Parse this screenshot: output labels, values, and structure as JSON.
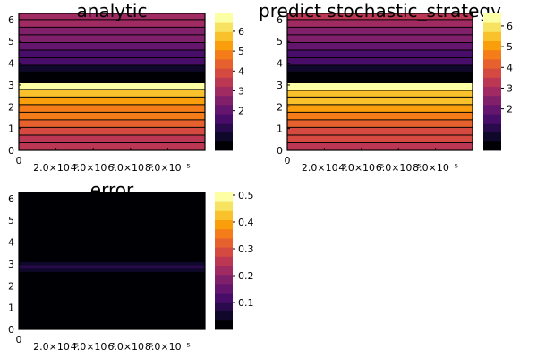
{
  "chart_data": [
    {
      "type": "heatmap",
      "title": "analytic",
      "x_ticks": [
        {
          "value": 0,
          "label": "0"
        },
        {
          "value": 2e-05,
          "label": "2.0×10⁻⁵"
        },
        {
          "value": 4e-05,
          "label": "4.0×10⁻⁵"
        },
        {
          "value": 6e-05,
          "label": "6.0×10⁻⁵"
        },
        {
          "value": 8e-05,
          "label": "8.0×10⁻⁵"
        }
      ],
      "y_ticks": [
        "0",
        "1",
        "2",
        "3",
        "4",
        "5",
        "6"
      ],
      "xlim": [
        0,
        0.0001
      ],
      "ylim": [
        0,
        6.283
      ],
      "y_bands": [
        {
          "y0": 0.0,
          "y1": 0.35,
          "value": 3.3
        },
        {
          "y0": 0.35,
          "y1": 0.7,
          "value": 3.6
        },
        {
          "y0": 0.7,
          "y1": 1.05,
          "value": 3.95
        },
        {
          "y0": 1.05,
          "y1": 1.4,
          "value": 4.3
        },
        {
          "y0": 1.4,
          "y1": 1.75,
          "value": 4.6
        },
        {
          "y0": 1.75,
          "y1": 2.1,
          "value": 4.95
        },
        {
          "y0": 2.1,
          "y1": 2.45,
          "value": 5.3
        },
        {
          "y0": 2.45,
          "y1": 2.8,
          "value": 5.7
        },
        {
          "y0": 2.8,
          "y1": 3.1,
          "value": 6.6
        },
        {
          "y0": 3.1,
          "y1": 3.6,
          "value": 0.0
        },
        {
          "y0": 3.6,
          "y1": 3.9,
          "value": 0.8
        },
        {
          "y0": 3.9,
          "y1": 4.25,
          "value": 1.4
        },
        {
          "y0": 4.25,
          "y1": 4.6,
          "value": 1.75
        },
        {
          "y0": 4.6,
          "y1": 4.95,
          "value": 2.0
        },
        {
          "y0": 4.95,
          "y1": 5.3,
          "value": 2.3
        },
        {
          "y0": 5.3,
          "y1": 5.65,
          "value": 2.6
        },
        {
          "y0": 5.65,
          "y1": 6.0,
          "value": 2.85
        },
        {
          "y0": 6.0,
          "y1": 6.283,
          "value": 3.1
        }
      ],
      "contour_lines": true,
      "colorbar": {
        "min": 0,
        "max": 6.9,
        "ticks": [
          "2",
          "3",
          "4",
          "5",
          "6"
        ],
        "levels": 15
      }
    },
    {
      "type": "heatmap",
      "title": "predict stochastic_strategy",
      "x_ticks": [
        {
          "value": 0,
          "label": "0"
        },
        {
          "value": 2e-05,
          "label": "2.0×10⁻⁵"
        },
        {
          "value": 4e-05,
          "label": "4.0×10⁻⁵"
        },
        {
          "value": 6e-05,
          "label": "6.0×10⁻⁵"
        },
        {
          "value": 8e-05,
          "label": "8.0×10⁻⁵"
        }
      ],
      "y_ticks": [
        "0",
        "1",
        "2",
        "3",
        "4",
        "5",
        "6"
      ],
      "xlim": [
        0,
        0.0001
      ],
      "ylim": [
        0,
        6.283
      ],
      "y_bands": [
        {
          "y0": 0.0,
          "y1": 0.35,
          "value": 3.3
        },
        {
          "y0": 0.35,
          "y1": 0.7,
          "value": 3.6
        },
        {
          "y0": 0.7,
          "y1": 1.05,
          "value": 3.95
        },
        {
          "y0": 1.05,
          "y1": 1.4,
          "value": 4.3
        },
        {
          "y0": 1.4,
          "y1": 1.75,
          "value": 4.6
        },
        {
          "y0": 1.75,
          "y1": 2.1,
          "value": 4.95
        },
        {
          "y0": 2.1,
          "y1": 2.45,
          "value": 5.3
        },
        {
          "y0": 2.45,
          "y1": 2.75,
          "value": 5.7
        },
        {
          "y0": 2.75,
          "y1": 3.1,
          "value": 6.6
        },
        {
          "y0": 3.1,
          "y1": 3.6,
          "value": 0.0
        },
        {
          "y0": 3.6,
          "y1": 3.9,
          "value": 0.8
        },
        {
          "y0": 3.9,
          "y1": 4.25,
          "value": 1.4
        },
        {
          "y0": 4.25,
          "y1": 4.6,
          "value": 1.75
        },
        {
          "y0": 4.6,
          "y1": 4.95,
          "value": 2.0
        },
        {
          "y0": 4.95,
          "y1": 5.3,
          "value": 2.3
        },
        {
          "y0": 5.3,
          "y1": 5.65,
          "value": 2.6
        },
        {
          "y0": 5.65,
          "y1": 6.0,
          "value": 2.85
        },
        {
          "y0": 6.0,
          "y1": 6.283,
          "value": 3.1
        }
      ],
      "contour_lines": true,
      "colorbar": {
        "min": 0,
        "max": 6.6,
        "ticks": [
          "2",
          "3",
          "4",
          "5",
          "6"
        ],
        "levels": 15
      }
    },
    {
      "type": "heatmap",
      "title": "error",
      "x_ticks": [
        {
          "value": 0,
          "label": "0"
        },
        {
          "value": 2e-05,
          "label": "2.0×10⁻⁵"
        },
        {
          "value": 4e-05,
          "label": "4.0×10⁻⁵"
        },
        {
          "value": 6e-05,
          "label": "6.0×10⁻⁵"
        },
        {
          "value": 8e-05,
          "label": "8.0×10⁻⁵"
        }
      ],
      "y_ticks": [
        "0",
        "1",
        "2",
        "3",
        "4",
        "5",
        "6"
      ],
      "xlim": [
        0,
        0.0001
      ],
      "ylim": [
        0,
        6.283
      ],
      "y_bands": [
        {
          "y0": 0.0,
          "y1": 2.5,
          "value": 0.0
        },
        {
          "y0": 2.5,
          "y1": 2.65,
          "value": 0.02
        },
        {
          "y0": 2.65,
          "y1": 2.8,
          "value": 0.05
        },
        {
          "y0": 2.8,
          "y1": 2.95,
          "value": 0.09
        },
        {
          "y0": 2.95,
          "y1": 3.1,
          "value": 0.04
        },
        {
          "y0": 3.1,
          "y1": 3.5,
          "value": 0.0
        },
        {
          "y0": 3.5,
          "y1": 3.75,
          "value": 0.02
        },
        {
          "y0": 3.75,
          "y1": 3.95,
          "value": 0.005
        },
        {
          "y0": 3.95,
          "y1": 4.2,
          "value": 0.025
        },
        {
          "y0": 4.2,
          "y1": 6.283,
          "value": 0.0
        }
      ],
      "contour_lines": false,
      "colorbar": {
        "min": 0,
        "max": 0.51,
        "ticks": [
          "0.1",
          "0.2",
          "0.3",
          "0.4",
          "0.5"
        ],
        "levels": 15
      }
    }
  ]
}
